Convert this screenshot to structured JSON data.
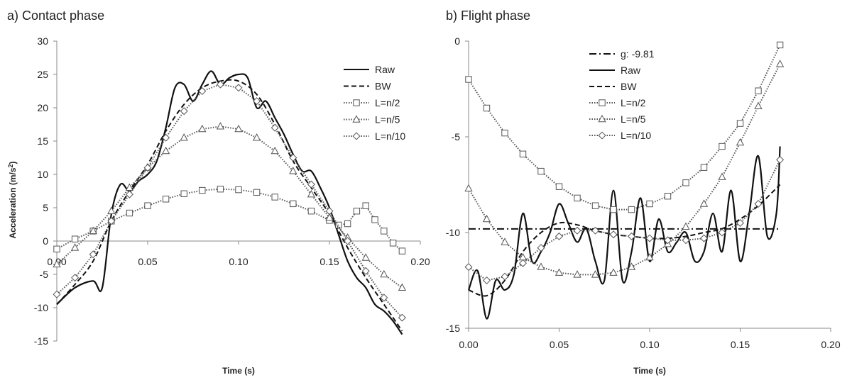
{
  "chart_data": [
    {
      "type": "line",
      "title": "a) Contact phase",
      "xlabel": "Time (s)",
      "ylabel_prefix": "Acceleration (m/s",
      "ylabel_sup": "2",
      "ylabel_suffix": ")",
      "xlim": [
        0,
        0.2
      ],
      "ylim": [
        -15,
        30
      ],
      "xticks": [
        "0.00",
        "0.05",
        "0.10",
        "0.15",
        "0.20"
      ],
      "yticks": [
        "-15",
        "-10",
        "-5",
        "0",
        "5",
        "10",
        "15",
        "20",
        "25",
        "30"
      ],
      "grid": false,
      "legend_position": "top-right",
      "series": [
        {
          "name": "Raw",
          "style": "solid",
          "marker": "none",
          "x": [
            0.0,
            0.01,
            0.02,
            0.025,
            0.03,
            0.035,
            0.04,
            0.045,
            0.05,
            0.055,
            0.06,
            0.065,
            0.07,
            0.075,
            0.08,
            0.085,
            0.09,
            0.095,
            0.1,
            0.105,
            0.11,
            0.115,
            0.12,
            0.125,
            0.13,
            0.135,
            0.14,
            0.145,
            0.15,
            0.155,
            0.16,
            0.165,
            0.17,
            0.175,
            0.18,
            0.185,
            0.19
          ],
          "y": [
            -9.5,
            -7,
            -6,
            -7,
            4,
            8.5,
            7.5,
            9,
            10,
            12,
            17,
            23,
            23.5,
            21,
            23.5,
            25.5,
            23.5,
            24.5,
            25,
            24.5,
            20,
            21,
            18.5,
            16,
            13,
            10.5,
            10.5,
            8,
            5,
            1,
            -3,
            -5.5,
            -7,
            -9.5,
            -10.5,
            -12,
            -14
          ]
        },
        {
          "name": "BW",
          "style": "dashed",
          "marker": "none",
          "x": [
            0.0,
            0.01,
            0.02,
            0.03,
            0.04,
            0.05,
            0.06,
            0.07,
            0.08,
            0.09,
            0.1,
            0.11,
            0.12,
            0.13,
            0.14,
            0.15,
            0.16,
            0.17,
            0.18,
            0.19
          ],
          "y": [
            -9.5,
            -6.5,
            -3,
            3,
            7.5,
            11.5,
            16.5,
            20.5,
            23,
            24,
            24,
            22,
            17.5,
            12,
            8,
            4,
            -1,
            -5.5,
            -9.5,
            -13.5
          ]
        },
        {
          "name": "L=n/2",
          "style": "dotted",
          "marker": "square",
          "x": [
            0.0,
            0.01,
            0.02,
            0.03,
            0.04,
            0.05,
            0.06,
            0.07,
            0.08,
            0.09,
            0.1,
            0.11,
            0.12,
            0.13,
            0.14,
            0.15,
            0.155,
            0.16,
            0.165,
            0.17,
            0.175,
            0.18,
            0.185,
            0.19
          ],
          "y": [
            -1.2,
            0.3,
            1.5,
            3,
            4.2,
            5.3,
            6.3,
            7.1,
            7.6,
            7.8,
            7.7,
            7.3,
            6.6,
            5.6,
            4.5,
            3.1,
            2.4,
            2.6,
            4.5,
            5.3,
            3.2,
            1.5,
            -0.3,
            -1.5
          ]
        },
        {
          "name": "L=n/5",
          "style": "dotted",
          "marker": "triangle",
          "x": [
            0.0,
            0.01,
            0.02,
            0.03,
            0.04,
            0.05,
            0.06,
            0.07,
            0.08,
            0.09,
            0.1,
            0.11,
            0.12,
            0.13,
            0.14,
            0.15,
            0.16,
            0.17,
            0.18,
            0.19
          ],
          "y": [
            -3.5,
            -1,
            1.5,
            4.5,
            8,
            11,
            13.5,
            15.5,
            16.8,
            17.2,
            16.8,
            15.5,
            13.5,
            10.5,
            7,
            3.5,
            0.5,
            -2.5,
            -5,
            -7
          ]
        },
        {
          "name": "L=n/10",
          "style": "dotted",
          "marker": "diamond",
          "x": [
            0.0,
            0.01,
            0.02,
            0.03,
            0.04,
            0.05,
            0.06,
            0.07,
            0.08,
            0.09,
            0.1,
            0.11,
            0.12,
            0.13,
            0.14,
            0.15,
            0.16,
            0.17,
            0.18,
            0.19
          ],
          "y": [
            -8,
            -5.5,
            -2,
            3,
            7,
            11,
            15.5,
            19.5,
            22.5,
            23.5,
            23,
            21,
            17,
            12.5,
            8.5,
            4.5,
            0,
            -4.5,
            -8.5,
            -11.5
          ]
        }
      ]
    },
    {
      "type": "line",
      "title": "b) Flight phase",
      "xlabel": "Time (s)",
      "xlim": [
        0,
        0.2
      ],
      "ylim": [
        -15,
        0
      ],
      "xticks": [
        "0.00",
        "0.05",
        "0.10",
        "0.15",
        "0.20"
      ],
      "yticks": [
        "-15",
        "-10",
        "-5",
        "0"
      ],
      "grid": false,
      "legend_position": "top-left",
      "series": [
        {
          "name": "g: -9.81",
          "style": "dashdot",
          "marker": "none",
          "x": [
            0.0,
            0.172
          ],
          "y": [
            -9.81,
            -9.81
          ]
        },
        {
          "name": "Raw",
          "style": "solid",
          "marker": "none",
          "x": [
            0.0,
            0.005,
            0.01,
            0.015,
            0.02,
            0.025,
            0.03,
            0.035,
            0.04,
            0.045,
            0.05,
            0.055,
            0.06,
            0.065,
            0.07,
            0.075,
            0.08,
            0.085,
            0.09,
            0.095,
            0.1,
            0.105,
            0.11,
            0.115,
            0.12,
            0.125,
            0.13,
            0.135,
            0.14,
            0.145,
            0.15,
            0.155,
            0.16,
            0.165,
            0.17,
            0.172
          ],
          "y": [
            -13,
            -12,
            -14.5,
            -12.5,
            -13,
            -12.2,
            -9,
            -11.5,
            -11,
            -10,
            -8.5,
            -9.5,
            -10.5,
            -9.8,
            -11.5,
            -12.5,
            -7.8,
            -12.5,
            -11,
            -8.2,
            -11.5,
            -9.3,
            -11,
            -10.5,
            -10,
            -11.5,
            -11,
            -9,
            -11,
            -7.8,
            -11.5,
            -9,
            -6,
            -10.2,
            -9,
            -5.5
          ]
        },
        {
          "name": "BW",
          "style": "dashed",
          "marker": "none",
          "x": [
            0.0,
            0.01,
            0.02,
            0.03,
            0.04,
            0.05,
            0.06,
            0.07,
            0.08,
            0.09,
            0.1,
            0.11,
            0.12,
            0.13,
            0.14,
            0.15,
            0.16,
            0.172
          ],
          "y": [
            -13,
            -13.3,
            -12.5,
            -11,
            -10,
            -9.5,
            -9.6,
            -9.9,
            -10.1,
            -10.2,
            -10.3,
            -10.3,
            -10.2,
            -10,
            -9.8,
            -9.3,
            -8.6,
            -7.5
          ]
        },
        {
          "name": "L=n/2",
          "style": "dotted",
          "marker": "square",
          "x": [
            0.0,
            0.01,
            0.02,
            0.03,
            0.04,
            0.05,
            0.06,
            0.07,
            0.08,
            0.09,
            0.1,
            0.11,
            0.12,
            0.13,
            0.14,
            0.15,
            0.16,
            0.172
          ],
          "y": [
            -2,
            -3.5,
            -4.8,
            -5.9,
            -6.8,
            -7.6,
            -8.2,
            -8.6,
            -8.8,
            -8.8,
            -8.5,
            -8.1,
            -7.4,
            -6.6,
            -5.5,
            -4.3,
            -2.6,
            -0.2
          ]
        },
        {
          "name": "L=n/5",
          "style": "dotted",
          "marker": "triangle",
          "x": [
            0.0,
            0.01,
            0.02,
            0.03,
            0.04,
            0.05,
            0.06,
            0.07,
            0.08,
            0.09,
            0.1,
            0.11,
            0.12,
            0.13,
            0.14,
            0.15,
            0.16,
            0.172
          ],
          "y": [
            -7.7,
            -9.3,
            -10.5,
            -11.3,
            -11.8,
            -12.1,
            -12.2,
            -12.2,
            -12.1,
            -11.8,
            -11.3,
            -10.6,
            -9.7,
            -8.5,
            -7.1,
            -5.3,
            -3.4,
            -1.2
          ]
        },
        {
          "name": "L=n/10",
          "style": "dotted",
          "marker": "diamond",
          "x": [
            0.0,
            0.01,
            0.02,
            0.03,
            0.04,
            0.05,
            0.06,
            0.07,
            0.08,
            0.09,
            0.1,
            0.11,
            0.12,
            0.13,
            0.14,
            0.15,
            0.16,
            0.172
          ],
          "y": [
            -11.8,
            -12.5,
            -12.3,
            -11.6,
            -10.8,
            -10.2,
            -9.9,
            -9.9,
            -10.1,
            -10.2,
            -10.3,
            -10.4,
            -10.4,
            -10.3,
            -10,
            -9.5,
            -8.5,
            -6.2
          ]
        }
      ]
    }
  ]
}
